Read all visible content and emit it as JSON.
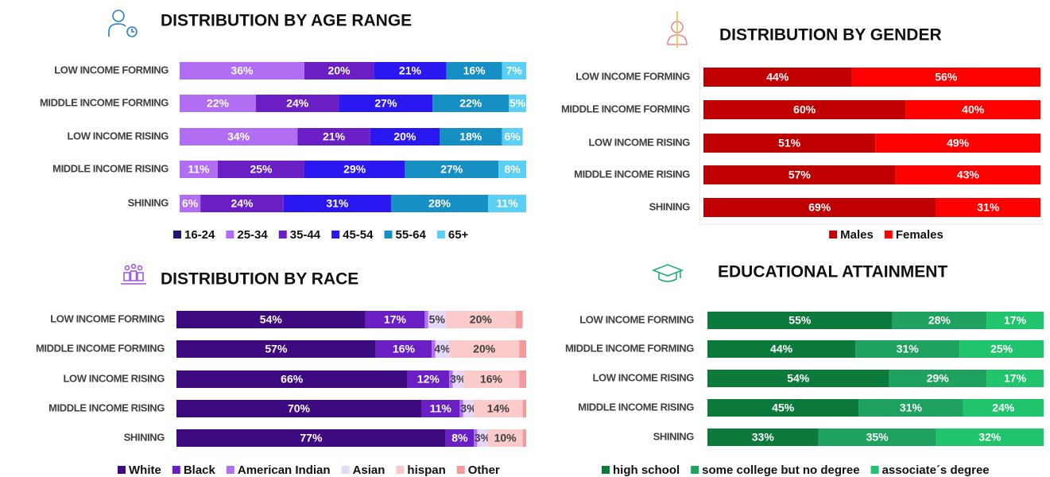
{
  "chart_data": [
    {
      "type": "stacked-bar-horizontal",
      "title": "DISTRIBUTION BY AGE RANGE",
      "categories": [
        "LOW INCOME FORMING",
        "MIDDLE INCOME FORMING",
        "LOW INCOME RISING",
        "MIDDLE INCOME RISING",
        "SHINING"
      ],
      "xlim": [
        0,
        100
      ],
      "legend": "bottom",
      "series": [
        {
          "name": "16-24",
          "color": "#1a1a6e",
          "values": [
            0,
            0,
            0,
            0,
            0
          ],
          "value_labels": [
            null,
            null,
            null,
            null,
            null
          ]
        },
        {
          "name": "25-34",
          "color": "#b26ef2",
          "values": [
            36,
            22,
            34,
            11,
            6
          ],
          "value_labels": [
            "36%",
            "22%",
            "34%",
            "11%",
            "6%"
          ]
        },
        {
          "name": "35-44",
          "color": "#6a1fc4",
          "values": [
            20,
            24,
            21,
            25,
            24
          ],
          "value_labels": [
            "20%",
            "24%",
            "21%",
            "25%",
            "24%"
          ]
        },
        {
          "name": "45-54",
          "color": "#2b18f0",
          "values": [
            21,
            27,
            20,
            29,
            31
          ],
          "value_labels": [
            "21%",
            "27%",
            "20%",
            "29%",
            "31%"
          ]
        },
        {
          "name": "55-64",
          "color": "#1690c4",
          "values": [
            16,
            22,
            18,
            27,
            28
          ],
          "value_labels": [
            "16%",
            "22%",
            "18%",
            "27%",
            "28%"
          ]
        },
        {
          "name": "65+",
          "color": "#5cd0f4",
          "values": [
            7,
            5,
            6,
            8,
            11
          ],
          "value_labels": [
            "7%",
            "5%",
            "6%",
            "8%",
            "11%"
          ]
        }
      ]
    },
    {
      "type": "stacked-bar-horizontal",
      "title": "DISTRIBUTION BY GENDER",
      "categories": [
        "LOW INCOME FORMING",
        "MIDDLE INCOME FORMING",
        "LOW INCOME RISING",
        "MIDDLE INCOME RISING",
        "SHINING"
      ],
      "xlim": [
        0,
        100
      ],
      "legend": "bottom",
      "series": [
        {
          "name": "Males",
          "color": "#c00000",
          "values": [
            44,
            60,
            51,
            57,
            69
          ],
          "value_labels": [
            "44%",
            "60%",
            "51%",
            "57%",
            "69%"
          ]
        },
        {
          "name": "Females",
          "color": "#ff0000",
          "values": [
            56,
            40,
            49,
            43,
            31
          ],
          "value_labels": [
            "56%",
            "40%",
            "49%",
            "43%",
            "31%"
          ]
        }
      ]
    },
    {
      "type": "stacked-bar-horizontal",
      "title": "DISTRIBUTION BY RACE",
      "categories": [
        "LOW INCOME FORMING",
        "MIDDLE INCOME FORMING",
        "LOW INCOME RISING",
        "MIDDLE INCOME RISING",
        "SHINING"
      ],
      "xlim": [
        0,
        100
      ],
      "legend": "bottom",
      "series": [
        {
          "name": "White",
          "color": "#3d0a80",
          "values": [
            54,
            57,
            66,
            70,
            77
          ],
          "value_labels": [
            "54%",
            "57%",
            "66%",
            "70%",
            "77%"
          ]
        },
        {
          "name": "Black",
          "color": "#6a1fc4",
          "values": [
            17,
            16,
            12,
            11,
            8
          ],
          "value_labels": [
            "17%",
            "16%",
            "12%",
            "11%",
            "8%"
          ]
        },
        {
          "name": "American Indian",
          "color": "#b070f0",
          "values": [
            1,
            1,
            1,
            1,
            1
          ],
          "value_labels": [
            null,
            null,
            null,
            null,
            null
          ]
        },
        {
          "name": "Asian",
          "color": "#e6d6fa",
          "values": [
            5,
            4,
            3,
            3,
            3
          ],
          "value_labels": [
            "5%",
            "4%",
            "3%",
            "3%",
            "3%"
          ]
        },
        {
          "name": "hispan",
          "color": "#fbcaca",
          "values": [
            20,
            20,
            16,
            14,
            10
          ],
          "value_labels": [
            "20%",
            "20%",
            "16%",
            "14%",
            "10%"
          ]
        },
        {
          "name": "Other",
          "color": "#f59a9a",
          "values": [
            2,
            2,
            2,
            1,
            1
          ],
          "value_labels": [
            null,
            null,
            null,
            null,
            null
          ]
        }
      ]
    },
    {
      "type": "stacked-bar-horizontal",
      "title": "EDUCATIONAL ATTAINMENT",
      "categories": [
        "LOW INCOME FORMING",
        "MIDDLE INCOME FORMING",
        "LOW INCOME RISING",
        "MIDDLE INCOME RISING",
        "SHINING"
      ],
      "xlim": [
        0,
        100
      ],
      "legend": "bottom",
      "series": [
        {
          "name": "high school",
          "color": "#0b7a3b",
          "values": [
            55,
            44,
            54,
            45,
            33
          ],
          "value_labels": [
            "55%",
            "44%",
            "54%",
            "45%",
            "33%"
          ]
        },
        {
          "name": "some college but no degree",
          "color": "#1fa25f",
          "values": [
            28,
            31,
            29,
            31,
            35
          ],
          "value_labels": [
            "28%",
            "31%",
            "29%",
            "31%",
            "35%"
          ]
        },
        {
          "name": "associate´s degree",
          "color": "#20c46c",
          "values": [
            17,
            25,
            17,
            24,
            32
          ],
          "value_labels": [
            "17%",
            "25%",
            "17%",
            "24%",
            "32%"
          ]
        }
      ]
    }
  ]
}
